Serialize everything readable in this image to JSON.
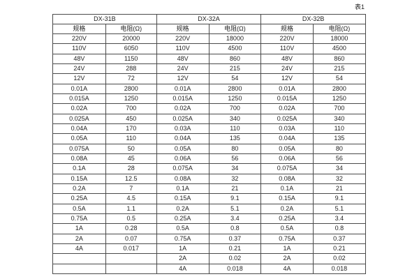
{
  "page": {
    "table_label": "表1"
  },
  "colors": {
    "background": "#ffffff",
    "border": "#4a4a4a",
    "text": "#1f1f1f"
  },
  "table": {
    "groups": [
      {
        "name": "DX-31B",
        "spec_header": "规格",
        "resistance_header": "电阻(Ω)"
      },
      {
        "name": "DX-32A",
        "spec_header": "规格",
        "resistance_header": "电阻(Ω)"
      },
      {
        "name": "DX-32B",
        "spec_header": "规格",
        "resistance_header": "电阻(Ω)"
      }
    ],
    "rows": [
      [
        "220V",
        "20000",
        "220V",
        "18000",
        "220V",
        "18000"
      ],
      [
        "110V",
        "6050",
        "110V",
        "4500",
        "110V",
        "4500"
      ],
      [
        "48V",
        "1150",
        "48V",
        "860",
        "48V",
        "860"
      ],
      [
        "24V",
        "288",
        "24V",
        "215",
        "24V",
        "215"
      ],
      [
        "12V",
        "72",
        "12V",
        "54",
        "12V",
        "54"
      ],
      [
        "0.01A",
        "2800",
        "0.01A",
        "2800",
        "0.01A",
        "2800"
      ],
      [
        "0.015A",
        "1250",
        "0.015A",
        "1250",
        "0.015A",
        "1250"
      ],
      [
        "0.02A",
        "700",
        "0.02A",
        "700",
        "0.02A",
        "700"
      ],
      [
        "0.025A",
        "450",
        "0.025A",
        "340",
        "0.025A",
        "340"
      ],
      [
        "0.04A",
        "170",
        "0.03A",
        "110",
        "0.03A",
        "110"
      ],
      [
        "0.05A",
        "110",
        "0.04A",
        "135",
        "0.04A",
        "135"
      ],
      [
        "0.075A",
        "50",
        "0.05A",
        "80",
        "0.05A",
        "80"
      ],
      [
        "0.08A",
        "45",
        "0.06A",
        "56",
        "0.06A",
        "56"
      ],
      [
        "0.1A",
        "28",
        "0.075A",
        "34",
        "0.075A",
        "34"
      ],
      [
        "0.15A",
        "12.5",
        "0.08A",
        "32",
        "0.08A",
        "32"
      ],
      [
        "0.2A",
        "7",
        "0.1A",
        "21",
        "0.1A",
        "21"
      ],
      [
        "0.25A",
        "4.5",
        "0.15A",
        "9.1",
        "0.15A",
        "9.1"
      ],
      [
        "0.5A",
        "1.1",
        "0.2A",
        "5.1",
        "0.2A",
        "5.1"
      ],
      [
        "0.75A",
        "0.5",
        "0.25A",
        "3.4",
        "0.25A",
        "3.4"
      ],
      [
        "1A",
        "0.28",
        "0.5A",
        "0.8",
        "0.5A",
        "0.8"
      ],
      [
        "2A",
        "0.07",
        "0.75A",
        "0.37",
        "0.75A",
        "0.37"
      ],
      [
        "4A",
        "0.017",
        "1A",
        "0.21",
        "1A",
        "0.21"
      ],
      [
        "",
        "",
        "2A",
        "0.02",
        "2A",
        "0.02"
      ],
      [
        "",
        "",
        "4A",
        "0.018",
        "4A",
        "0.018"
      ]
    ]
  }
}
